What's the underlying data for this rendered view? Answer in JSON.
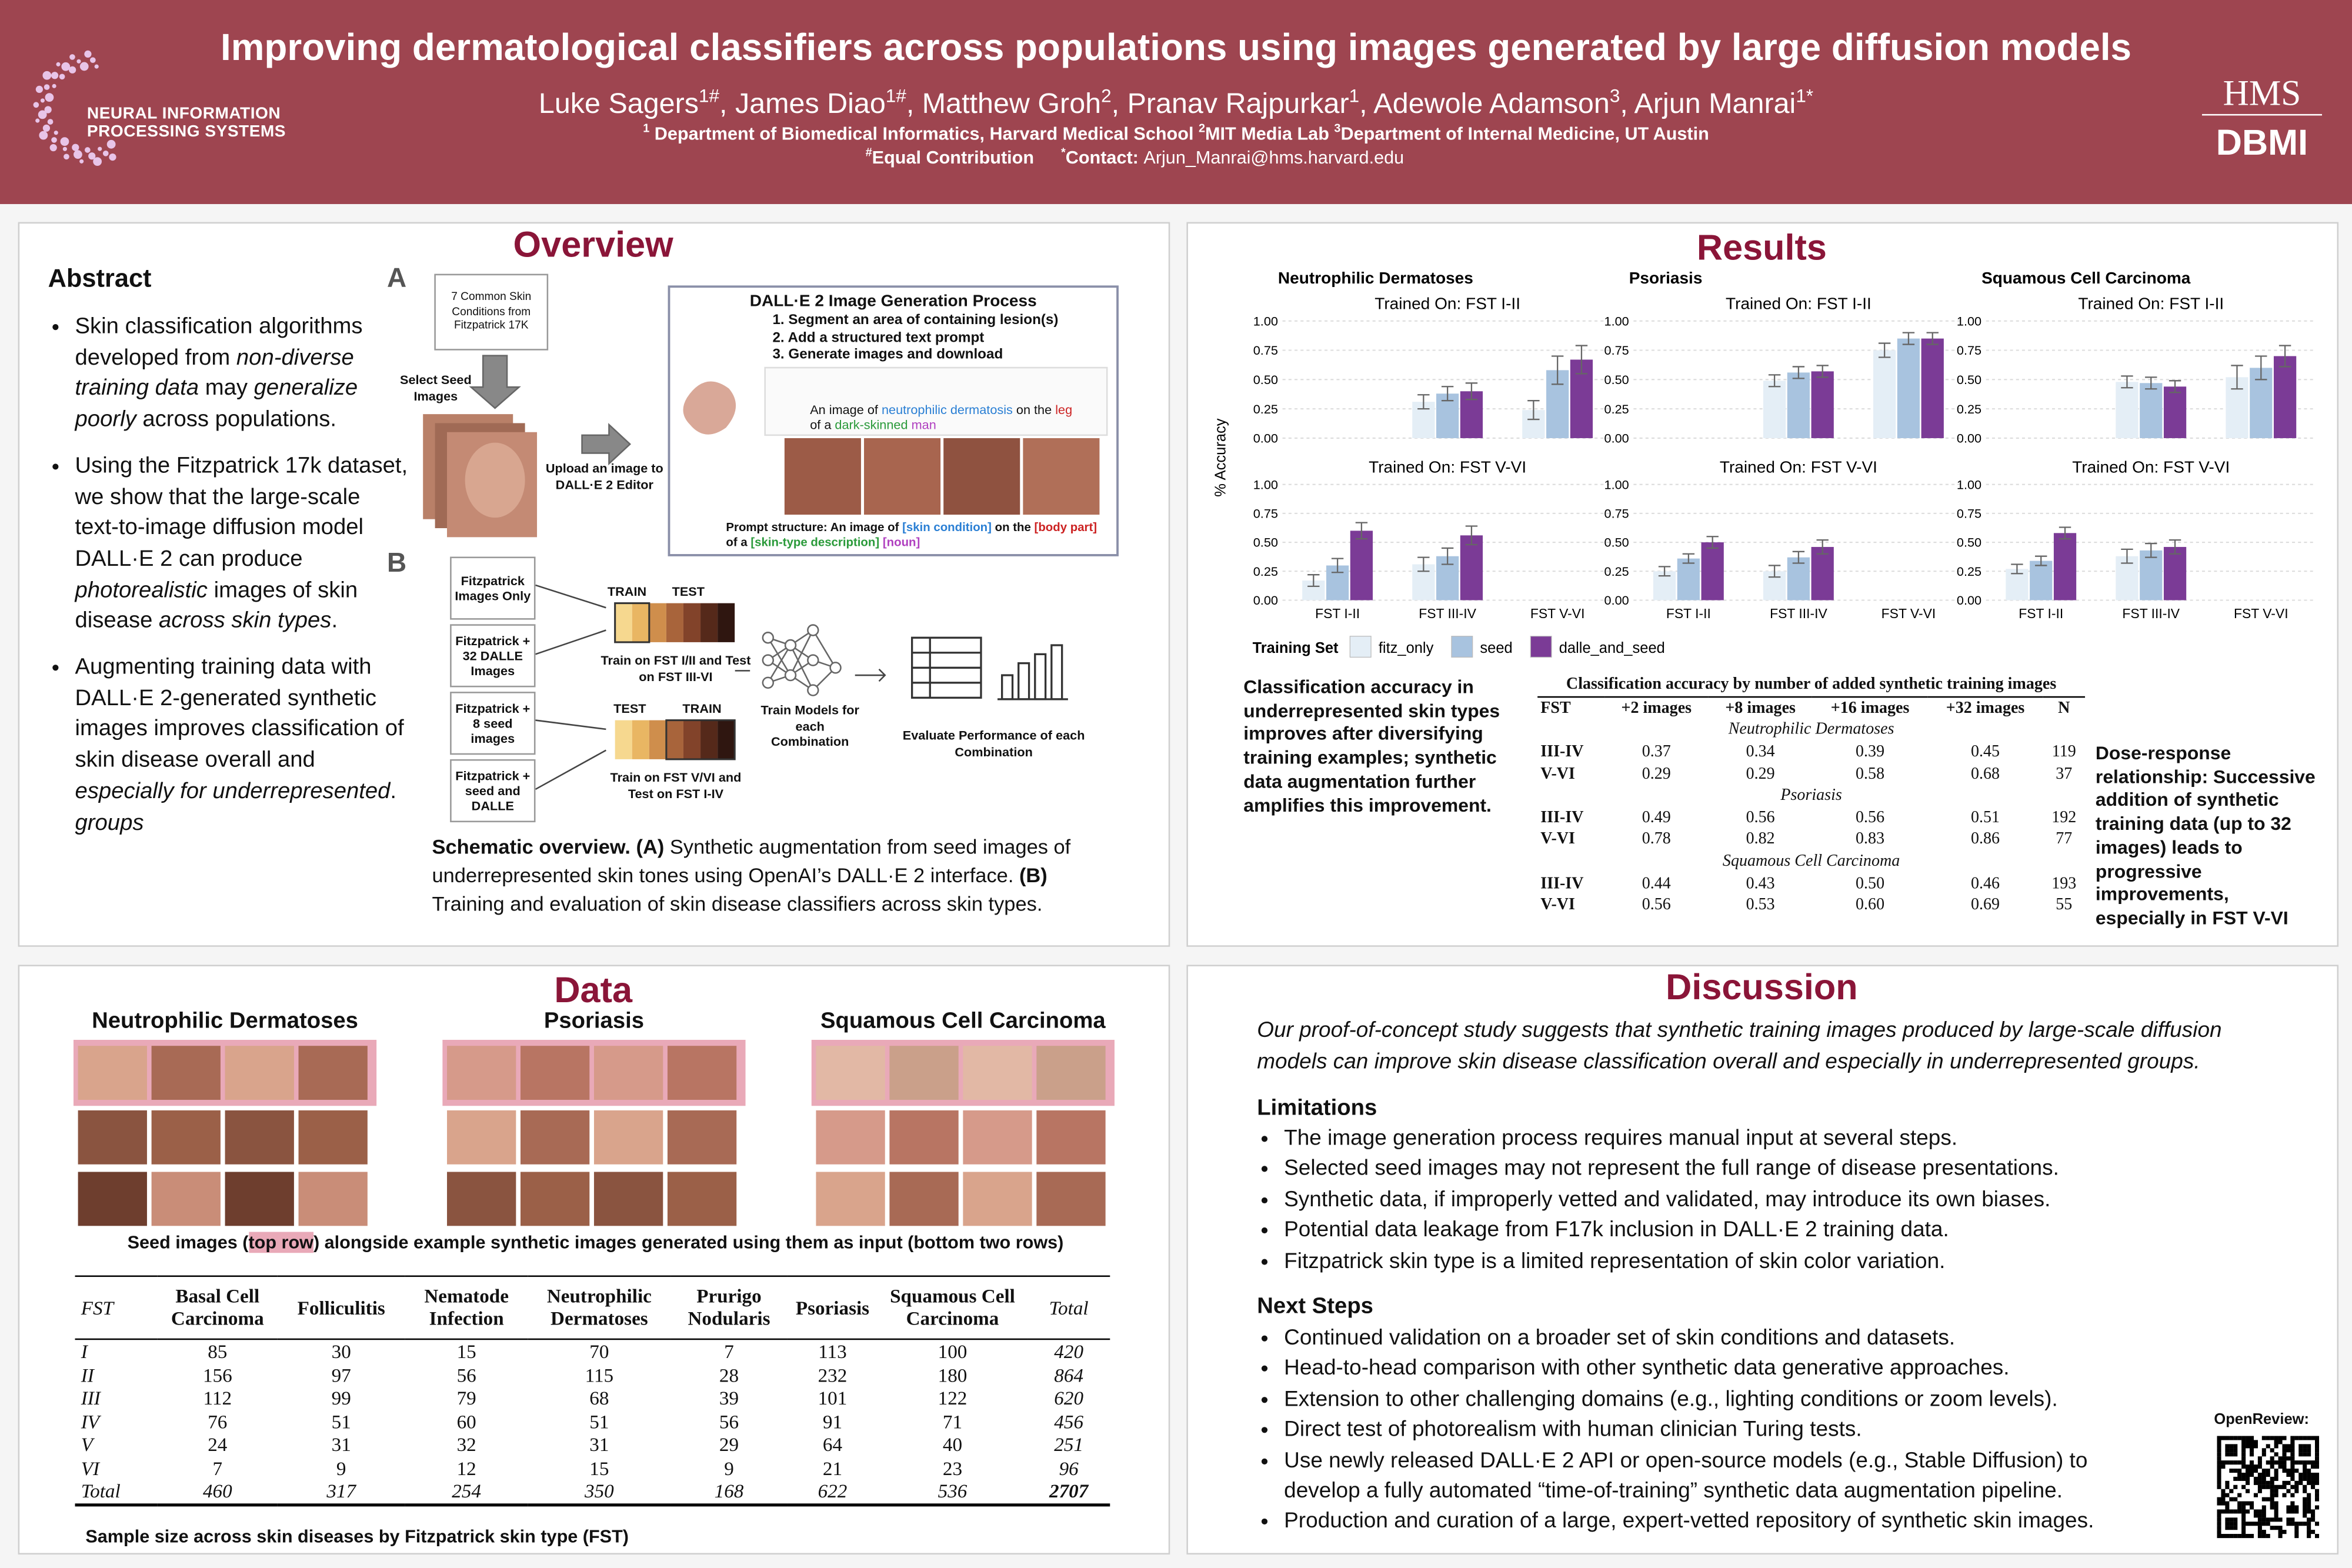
{
  "header": {
    "title": "Improving dermatological classifiers across populations using images generated by large diffusion models",
    "authors": [
      {
        "text": "Luke Sagers",
        "sup": "1#"
      },
      {
        "text": ", James Diao",
        "sup": "1#"
      },
      {
        "text": ", Matthew Groh",
        "sup": "2"
      },
      {
        "text": ", Pranav Rajpurkar",
        "sup": "1"
      },
      {
        "text": ", Adewole Adamson",
        "sup": "3"
      },
      {
        "text": ", Arjun Manrai",
        "sup": "1*"
      }
    ],
    "affiliations": [
      {
        "sup": "1",
        "text": " Department of Biomedical Informatics, Harvard Medical School "
      },
      {
        "sup": "2",
        "text": "MIT Media Lab "
      },
      {
        "sup": "3",
        "text": "Department of Internal Medicine, UT Austin"
      }
    ],
    "notes": [
      {
        "sup": "#",
        "text": "Equal Contribution"
      },
      {
        "sup": "*",
        "text": "Contact:"
      }
    ],
    "email": "Arjun_Manrai@hms.harvard.edu",
    "logo_left": [
      "NEURAL INFORMATION",
      "PROCESSING SYSTEMS"
    ],
    "logo_right": [
      "HMS",
      "DBMI"
    ]
  },
  "abstract": {
    "title": "Abstract",
    "bullets": [
      [
        "Skin classification algorithms developed from ",
        {
          "text": "non-diverse training data",
          "style": "i"
        },
        " may ",
        {
          "text": "generalize poorly",
          "style": "i"
        },
        " across populations."
      ],
      [
        "Using the Fitzpatrick 17k dataset, we show that the large-scale text-to-image diffusion model DALL·E 2 can produce ",
        {
          "text": "photorealistic",
          "style": "i"
        },
        " images of skin disease ",
        {
          "text": "across skin types",
          "style": "i"
        },
        "."
      ],
      [
        "Augmenting training data with DALL·E 2-generated synthetic images improves classification of skin disease overall and ",
        {
          "text": "especially for underrepresented",
          "style": "i"
        },
        ". ",
        {
          "text": "groups",
          "style": "i"
        }
      ]
    ]
  },
  "overview": {
    "title": "Overview",
    "label_a": "A",
    "label_b": "B",
    "source": "7 Common Skin Conditions from Fitzpatrick 17K",
    "select": "Select Seed Images",
    "upload": "Upload an image to DALL·E 2 Editor",
    "process_title": "DALL·E 2 Image Generation Process",
    "steps": [
      "1. Segment an area of containing lesion(s)",
      "2. Add a structured text prompt",
      "3. Generate images and download"
    ],
    "prompt": [
      "An image of ",
      {
        "text": "neutrophilic dermatosis",
        "color": "#2a7fd4"
      },
      " on the ",
      {
        "text": "leg",
        "color": "#cc2222"
      },
      " of a ",
      {
        "text": "dark-skinned",
        "color": "#2a9a3a"
      },
      " ",
      {
        "text": "man",
        "color": "#b040c0"
      }
    ],
    "structure": [
      "Prompt structure: An image of ",
      {
        "text": "[skin condition]",
        "color": "#2a7fd4"
      },
      " on the ",
      {
        "text": "[body part]",
        "color": "#cc2222"
      },
      " of a ",
      {
        "text": "[skin-type description]",
        "color": "#2a9a3a"
      },
      " ",
      {
        "text": "[noun]",
        "color": "#b040c0"
      }
    ],
    "datasets": [
      "Fitzpatrick Images Only",
      "Fitzpatrick + 32 DALLE Images",
      "Fitzpatrick + 8 seed images",
      "Fitzpatrick + seed and DALLE"
    ],
    "splits": [
      {
        "labels": [
          "TRAIN",
          "TEST"
        ],
        "text": "Train on FST I/II and Test on FST III-VI"
      },
      {
        "labels": [
          "TEST",
          "TRAIN"
        ],
        "text": "Train on FST V/VI and Test on FST I-IV"
      }
    ],
    "train": "Train Models for each Combination",
    "evaluate": "Evaluate Performance of each Combination",
    "caption": [
      {
        "text": "Schematic overview. (A)",
        "style": "b"
      },
      " Synthetic augmentation from seed images of underrepresented skin tones using OpenAI’s DALL·E 2 interface. ",
      {
        "text": "(B)",
        "style": "b"
      },
      " Training and evaluation of skin disease classifiers across skin types."
    ]
  },
  "results": {
    "title": "Results",
    "left_note": "Classification accuracy in underrepresented skin types improves after diversifying training examples; synthetic data augmentation further amplifies this improvement.",
    "right_note": "Dose-response relationship: Successive addition of synthetic training data (up to 32 images) leads to progressive improvements, especially in FST V-VI",
    "table": {
      "caption": "Classification accuracy by number of added synthetic training images",
      "header": [
        "FST",
        "+2 images",
        "+8 images",
        "+16 images",
        "+32 images",
        "N"
      ],
      "groups": [
        {
          "name": "Neutrophilic Dermatoses",
          "rows": [
            [
              "III-IV",
              "0.37",
              "0.34",
              "0.39",
              "0.45",
              "119"
            ],
            [
              "V-VI",
              "0.29",
              "0.29",
              "0.58",
              "0.68",
              "37"
            ]
          ]
        },
        {
          "name": "Psoriasis",
          "rows": [
            [
              "III-IV",
              "0.49",
              "0.56",
              "0.56",
              "0.51",
              "192"
            ],
            [
              "V-VI",
              "0.78",
              "0.82",
              "0.83",
              "0.86",
              "77"
            ]
          ]
        },
        {
          "name": "Squamous Cell Carcinoma",
          "rows": [
            [
              "III-IV",
              "0.44",
              "0.43",
              "0.50",
              "0.46",
              "193"
            ],
            [
              "V-VI",
              "0.56",
              "0.53",
              "0.60",
              "0.69",
              "55"
            ]
          ]
        }
      ]
    }
  },
  "chart_data": {
    "type": "bar",
    "ylabel": "% Accuracy",
    "legend_title": "Training Set",
    "categories": [
      "FST I-II",
      "FST III-IV",
      "FST V-VI"
    ],
    "series_names": [
      "fitz_only",
      "seed",
      "dalle_and_seed"
    ],
    "colors": [
      "#e4eef6",
      "#a8c3df",
      "#7b3b96"
    ],
    "ylim": [
      0,
      1.05
    ],
    "yticks": [
      {
        "value": 0,
        "label": "0.00"
      },
      {
        "value": 0.25,
        "label": "0.25"
      },
      {
        "value": 0.5,
        "label": "0.50"
      },
      {
        "value": 0.75,
        "label": "0.75"
      },
      {
        "value": 1,
        "label": "1.00"
      }
    ],
    "grid": true,
    "columns": [
      {
        "title": "Neutrophilic Dermatoses",
        "panels": [
          {
            "title": "Trained On: FST I-II",
            "series": [
              {
                "values": [
                  null,
                  0.31,
                  0.24
                ],
                "errors": [
                  null,
                  0.06,
                  0.08
                ]
              },
              {
                "values": [
                  null,
                  0.38,
                  0.58
                ],
                "errors": [
                  null,
                  0.06,
                  0.12
                ]
              },
              {
                "values": [
                  null,
                  0.4,
                  0.67
                ],
                "errors": [
                  null,
                  0.07,
                  0.12
                ]
              }
            ]
          },
          {
            "title": "Trained On: FST V-VI",
            "series": [
              {
                "values": [
                  0.17,
                  0.31,
                  null
                ],
                "errors": [
                  0.05,
                  0.06,
                  null
                ]
              },
              {
                "values": [
                  0.3,
                  0.38,
                  null
                ],
                "errors": [
                  0.06,
                  0.07,
                  null
                ]
              },
              {
                "values": [
                  0.6,
                  0.56,
                  null
                ],
                "errors": [
                  0.07,
                  0.08,
                  null
                ]
              }
            ]
          }
        ]
      },
      {
        "title": "Psoriasis",
        "panels": [
          {
            "title": "Trained On: FST I-II",
            "series": [
              {
                "values": [
                  null,
                  0.49,
                  0.75
                ],
                "errors": [
                  null,
                  0.05,
                  0.06
                ]
              },
              {
                "values": [
                  null,
                  0.56,
                  0.85
                ],
                "errors": [
                  null,
                  0.05,
                  0.05
                ]
              },
              {
                "values": [
                  null,
                  0.57,
                  0.85
                ],
                "errors": [
                  null,
                  0.05,
                  0.05
                ]
              }
            ]
          },
          {
            "title": "Trained On: FST V-VI",
            "series": [
              {
                "values": [
                  0.25,
                  0.25,
                  null
                ],
                "errors": [
                  0.04,
                  0.05,
                  null
                ]
              },
              {
                "values": [
                  0.36,
                  0.37,
                  null
                ],
                "errors": [
                  0.04,
                  0.05,
                  null
                ]
              },
              {
                "values": [
                  0.5,
                  0.46,
                  null
                ],
                "errors": [
                  0.05,
                  0.06,
                  null
                ]
              }
            ]
          }
        ]
      },
      {
        "title": "Squamous Cell Carcinoma",
        "panels": [
          {
            "title": "Trained On: FST I-II",
            "series": [
              {
                "values": [
                  null,
                  0.48,
                  0.52
                ],
                "errors": [
                  null,
                  0.05,
                  0.1
                ]
              },
              {
                "values": [
                  null,
                  0.47,
                  0.6
                ],
                "errors": [
                  null,
                  0.05,
                  0.1
                ]
              },
              {
                "values": [
                  null,
                  0.44,
                  0.7
                ],
                "errors": [
                  null,
                  0.05,
                  0.09
                ]
              }
            ]
          },
          {
            "title": "Trained On: FST V-VI",
            "series": [
              {
                "values": [
                  0.27,
                  0.38,
                  null
                ],
                "errors": [
                  0.04,
                  0.06,
                  null
                ]
              },
              {
                "values": [
                  0.34,
                  0.43,
                  null
                ],
                "errors": [
                  0.04,
                  0.06,
                  null
                ]
              },
              {
                "values": [
                  0.58,
                  0.46,
                  null
                ],
                "errors": [
                  0.05,
                  0.06,
                  null
                ]
              }
            ]
          }
        ]
      }
    ]
  },
  "data": {
    "title": "Data",
    "groups": [
      "Neutrophilic Dermatoses",
      "Psoriasis",
      "Squamous Cell Carcinoma"
    ],
    "images_caption": [
      "Seed images (",
      {
        "text": "top row",
        "style": "hl"
      },
      ") alongside example synthetic images generated using them as input (bottom two rows)"
    ],
    "table": {
      "header": [
        "FST",
        "Basal Cell Carcinoma",
        "Folliculitis",
        "Nematode Infection",
        "Neutrophilic Dermatoses",
        "Prurigo Nodularis",
        "Psoriasis",
        "Squamous Cell Carcinoma",
        "Total"
      ],
      "rows": [
        [
          "I",
          85,
          30,
          15,
          70,
          7,
          113,
          100,
          420
        ],
        [
          "II",
          156,
          97,
          56,
          115,
          28,
          232,
          180,
          864
        ],
        [
          "III",
          112,
          99,
          79,
          68,
          39,
          101,
          122,
          620
        ],
        [
          "IV",
          76,
          51,
          60,
          51,
          56,
          91,
          71,
          456
        ],
        [
          "V",
          24,
          31,
          32,
          31,
          29,
          64,
          40,
          251
        ],
        [
          "VI",
          7,
          9,
          12,
          15,
          9,
          21,
          23,
          96
        ],
        [
          "Total",
          460,
          317,
          254,
          350,
          168,
          622,
          536,
          2707
        ]
      ]
    },
    "table_caption": "Sample size across skin diseases by Fitzpatrick skin type (FST)"
  },
  "discussion": {
    "title": "Discussion",
    "intro": "Our proof-of-concept study suggests that synthetic training images produced by large-scale diffusion models can improve skin disease classification overall and especially in underrepresented groups.",
    "limitations_title": "Limitations",
    "limitations": [
      "The image generation process requires manual input at several steps.",
      "Selected seed images may not represent the full range of disease presentations.",
      "Synthetic data, if improperly vetted and validated, may introduce its own biases.",
      "Potential data leakage from F17k inclusion in DALL·E 2 training data.",
      "Fitzpatrick skin type is a limited representation of skin color variation."
    ],
    "next_title": "Next Steps",
    "next": [
      "Continued validation on a broader set of skin conditions and datasets.",
      "Head-to-head comparison with other synthetic data generative approaches.",
      "Extension to other challenging domains (e.g., lighting conditions or zoom levels).",
      "Direct test of photorealism with human clinician Turing tests.",
      "Use newly released DALL·E 2 API or open-source models (e.g., Stable Diffusion) to develop a fully automated “time-of-training” synthetic data augmentation pipeline.",
      "Production and curation of a large, expert-vetted repository of synthetic skin images."
    ],
    "qr_label": "OpenReview:"
  }
}
